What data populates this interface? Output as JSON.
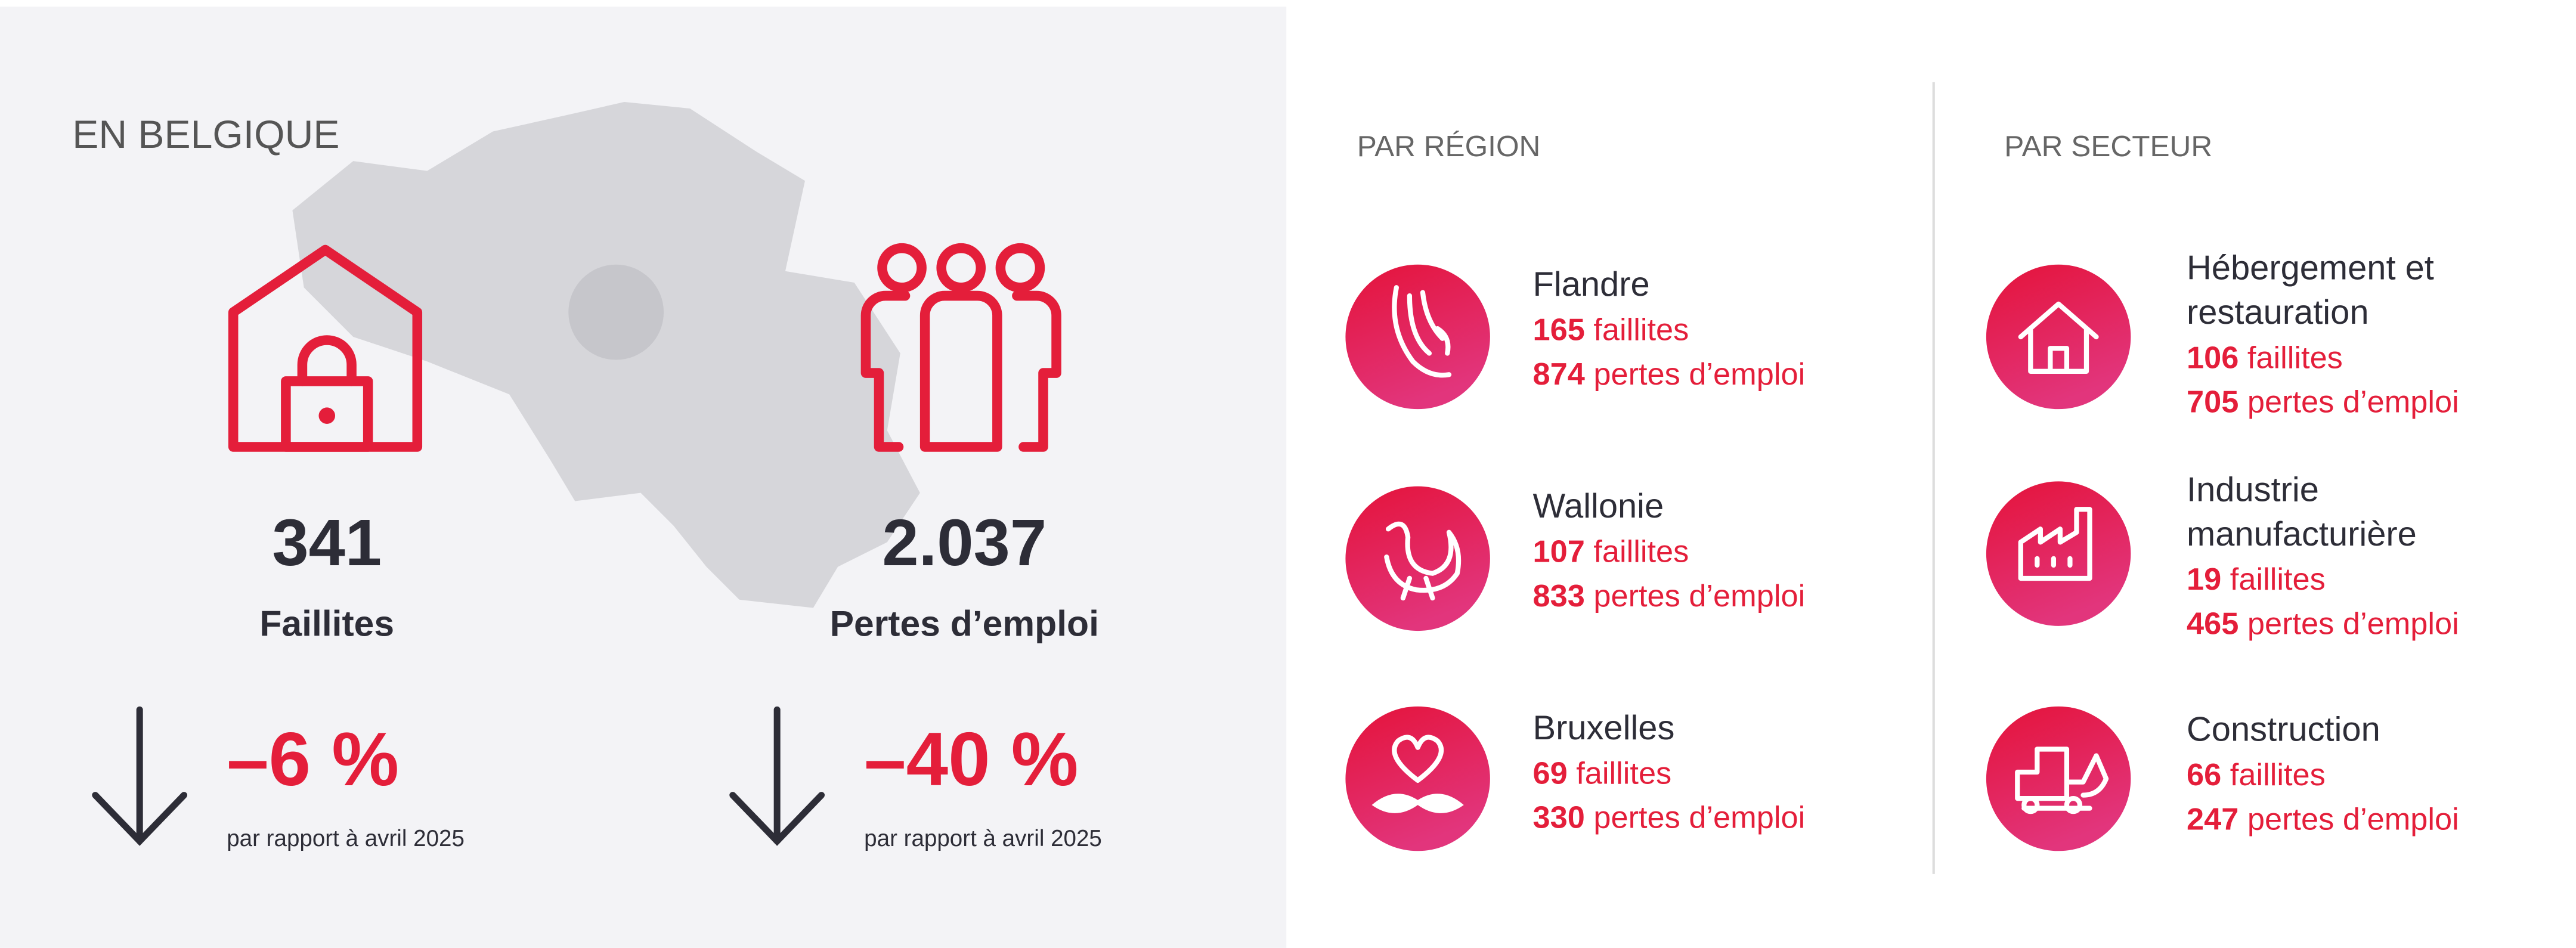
{
  "belgium": {
    "title": "EN BELGIQUE",
    "stats": [
      {
        "value": 341,
        "label": "Faillites",
        "change": "–6 %",
        "comparison": "par rapport à avril 2025"
      },
      {
        "value": "2.037",
        "label": "Pertes d’emploi",
        "change": "–40 %",
        "comparison": "par rapport à avril 2025"
      }
    ]
  },
  "regions": {
    "title": "PAR RÉGION",
    "items": [
      {
        "name_lines": [
          "Flandre"
        ],
        "bankruptcies": 165,
        "bankruptcies_label": "faillites",
        "jobs": 874,
        "jobs_label": "pertes d’emploi"
      },
      {
        "name_lines": [
          "Wallonie"
        ],
        "bankruptcies": 107,
        "bankruptcies_label": "faillites",
        "jobs": 833,
        "jobs_label": "pertes d’emploi"
      },
      {
        "name_lines": [
          "Bruxelles"
        ],
        "bankruptcies": 69,
        "bankruptcies_label": "faillites",
        "jobs": 330,
        "jobs_label": "pertes d’emploi"
      }
    ]
  },
  "sectors": {
    "title": "PAR SECTEUR",
    "items": [
      {
        "name_lines": [
          "Hébergement et",
          "restauration"
        ],
        "bankruptcies": 106,
        "bankruptcies_label": "faillites",
        "jobs": 705,
        "jobs_label": "pertes d’emploi"
      },
      {
        "name_lines": [
          "Industrie",
          "manufacturière"
        ],
        "bankruptcies": 19,
        "bankruptcies_label": "faillites",
        "jobs": 465,
        "jobs_label": "pertes d’emploi"
      },
      {
        "name_lines": [
          "Construction"
        ],
        "bankruptcies": 66,
        "bankruptcies_label": "faillites",
        "jobs": 247,
        "jobs_label": "pertes d’emploi"
      }
    ]
  }
}
